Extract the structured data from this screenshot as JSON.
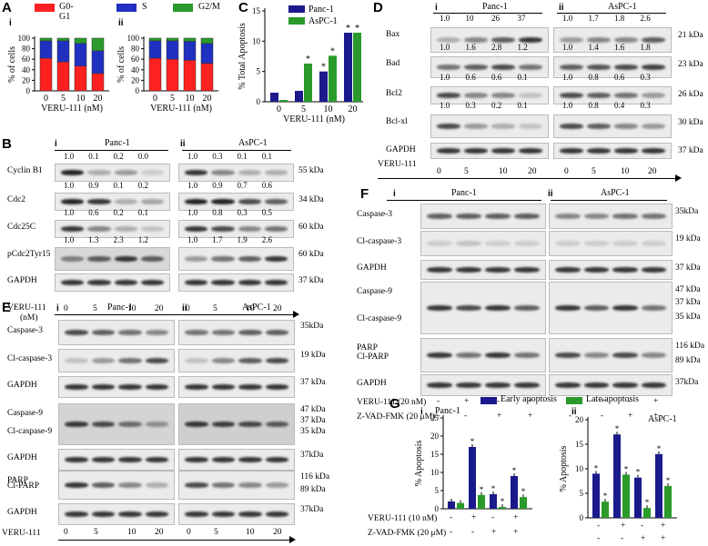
{
  "panelA": {
    "label": "A",
    "sub_i": "i",
    "sub_ii": "ii",
    "legend": [
      {
        "name": "G0-G1",
        "color": "#ff2020"
      },
      {
        "name": "S",
        "color": "#2030c0"
      },
      {
        "name": "G2/M",
        "color": "#2a9a2a"
      }
    ],
    "ylabel": "% of cells",
    "xlabel": "VERU-111 (nM)",
    "yticks": [
      "0",
      "20",
      "40",
      "60",
      "80",
      "100"
    ]
  },
  "chart_data": [
    {
      "type": "bar",
      "title": "",
      "xlabel": "VERU-111 (nM)",
      "ylabel": "% of cells",
      "ylim": [
        0,
        100
      ],
      "categories": [
        "0",
        "5",
        "10",
        "20"
      ],
      "series": [
        {
          "name": "G0-G1",
          "values": [
            62,
            55,
            47,
            33
          ]
        },
        {
          "name": "S",
          "values": [
            33,
            40,
            43,
            43
          ]
        },
        {
          "name": "G2/M",
          "values": [
            5,
            5,
            10,
            24
          ]
        }
      ]
    },
    {
      "type": "bar",
      "title": "",
      "xlabel": "VERU-111 (nM)",
      "ylabel": "% of cells",
      "ylim": [
        0,
        100
      ],
      "categories": [
        "0",
        "5",
        "10",
        "20"
      ],
      "series": [
        {
          "name": "G0-G1",
          "values": [
            62,
            60,
            58,
            52
          ]
        },
        {
          "name": "S",
          "values": [
            33,
            35,
            36,
            38
          ]
        },
        {
          "name": "G2/M",
          "values": [
            5,
            5,
            6,
            10
          ]
        }
      ]
    },
    {
      "type": "bar",
      "title": "",
      "xlabel": "VERU-111 (nM)",
      "ylabel": "% Total Apoptosis",
      "ylim": [
        0,
        15
      ],
      "categories": [
        "0",
        "5",
        "10",
        "20"
      ],
      "series": [
        {
          "name": "Panc-1",
          "values": [
            1.5,
            1.8,
            5.0,
            11.4
          ]
        },
        {
          "name": "AsPC-1",
          "values": [
            0.3,
            6.3,
            7.6,
            11.4
          ]
        }
      ]
    },
    {
      "type": "bar",
      "title": "",
      "xlabel": "",
      "ylabel": "% Apoptosis",
      "ylim": [
        0,
        25
      ],
      "categories": [
        "-/-",
        "+/-",
        "-/+",
        "+/+"
      ],
      "series": [
        {
          "name": "Early apoptosis",
          "values": [
            2.0,
            17.0,
            4.0,
            9.0
          ]
        },
        {
          "name": "Late apoptosis",
          "values": [
            1.6,
            3.8,
            0.5,
            3.2
          ]
        }
      ]
    },
    {
      "type": "bar",
      "title": "",
      "xlabel": "",
      "ylabel": "% Apoptosis",
      "ylim": [
        0,
        20
      ],
      "categories": [
        "-/-",
        "+/-",
        "-/+",
        "+/+"
      ],
      "series": [
        {
          "name": "Early apoptosis",
          "values": [
            9.0,
            17.0,
            8.2,
            13.0
          ]
        },
        {
          "name": "Late apoptosis",
          "values": [
            3.3,
            8.8,
            2.0,
            6.5
          ]
        }
      ]
    }
  ],
  "panelC": {
    "label": "C",
    "ylabel": "% Total Apoptosis",
    "xlabel": "VERU-111 (nM)",
    "legend": [
      {
        "name": "Panc-1",
        "color": "#1a1a8c"
      },
      {
        "name": "AsPC-1",
        "color": "#2a9a2a"
      }
    ],
    "yticks": [
      "0",
      "5",
      "10",
      "15"
    ],
    "star": "*"
  },
  "panelB": {
    "label": "B",
    "sub_i": "i",
    "sub_ii": "ii",
    "cell_i": "Panc-1",
    "cell_ii": "AsPC-1",
    "rows": [
      {
        "name": "Cyclin B1",
        "kda": "55 kDa",
        "nums_i": [
          "1.0",
          "0.1",
          "0.2",
          "0.0"
        ],
        "nums_ii": [
          "1.0",
          "0.3",
          "0.1",
          "0.1"
        ]
      },
      {
        "name": "Cdc2",
        "kda": "34 kDa",
        "nums_i": [
          "1.0",
          "0.9",
          "0.1",
          "0.2"
        ],
        "nums_ii": [
          "1.0",
          "0.9",
          "0.7",
          "0.6"
        ]
      },
      {
        "name": "Cdc25C",
        "kda": "60 kDa",
        "nums_i": [
          "1.0",
          "0.6",
          "0.2",
          "0.1"
        ],
        "nums_ii": [
          "1.0",
          "0.8",
          "0.3",
          "0.5"
        ]
      },
      {
        "name": "pCdc2Tyr15",
        "kda": "60 kDa",
        "nums_i": [
          "1.0",
          "1.3",
          "2.3",
          "1.2"
        ],
        "nums_ii": [
          "1.0",
          "1.7",
          "1.9",
          "2.6"
        ]
      },
      {
        "name": "GAPDH",
        "kda": "37 kDa",
        "nums_i": [],
        "nums_ii": []
      }
    ],
    "veru_label": "VERU-111",
    "veru_unit": "(nM)",
    "doses": [
      "0",
      "5",
      "10",
      "20"
    ]
  },
  "panelD": {
    "label": "D",
    "sub_i": "i",
    "sub_ii": "ii",
    "cell_i": "Panc-1",
    "cell_ii": "AsPC-1",
    "rows": [
      {
        "name": "Bax",
        "kda": "21 kDa",
        "nums_i": [
          "1.0",
          "10",
          "26",
          "37"
        ],
        "nums_ii": [
          "1.0",
          "1.7",
          "1.8",
          "2.6"
        ]
      },
      {
        "name": "Bad",
        "kda": "23 kDa",
        "nums_i": [
          "1.0",
          "1.6",
          "2.8",
          "1.2"
        ],
        "nums_ii": [
          "1.0",
          "1.4",
          "1.6",
          "1.8"
        ]
      },
      {
        "name": "Bcl2",
        "kda": "26 kDa",
        "nums_i": [
          "1.0",
          "0.6",
          "0.6",
          "0.1"
        ],
        "nums_ii": [
          "1.0",
          "0.8",
          "0.6",
          "0.3"
        ]
      },
      {
        "name": "Bcl-xl",
        "kda": "30 kDa",
        "nums_i": [
          "1.0",
          "0.3",
          "0.2",
          "0.1"
        ],
        "nums_ii": [
          "1.0",
          "0.8",
          "0.4",
          "0.3"
        ]
      },
      {
        "name": "GAPDH",
        "kda": "37 kDa",
        "nums_i": [],
        "nums_ii": []
      }
    ],
    "veru_label": "VERU-111",
    "doses": [
      "0",
      "5",
      "10",
      "20"
    ]
  },
  "panelE": {
    "label": "E",
    "sub_i": "i",
    "sub_ii": "ii",
    "cell_i": "Panc-1",
    "cell_ii": "AsPC-1",
    "rows": [
      {
        "name": "Caspase-3",
        "kda": "35kDa"
      },
      {
        "name": "Cl-caspase-3",
        "kda": "19 kDa"
      },
      {
        "name": "GAPDH",
        "kda": "37 kDa"
      },
      {
        "name": "Caspase-9",
        "name2": "Cl-caspase-9",
        "kda": "47 kDa",
        "kda2": "37 kDa",
        "kda3": "35 kDa"
      },
      {
        "name": "GAPDH",
        "kda": "37kDa"
      },
      {
        "name": "PARP",
        "name2": "Cl-PARP",
        "kda": "116 kDa",
        "kda2": "89 kDa"
      },
      {
        "name": "GAPDH",
        "kda": "37kDa"
      }
    ],
    "veru_label": "VERU-111",
    "doses": [
      "0",
      "5",
      "10",
      "20"
    ]
  },
  "panelF": {
    "label": "F",
    "sub_i": "i",
    "sub_ii": "ii",
    "cell_i": "Panc-1",
    "cell_ii": "AsPC-1",
    "rows": [
      {
        "name": "Caspase-3",
        "kda": "35kDa"
      },
      {
        "name": "Cl-caspase-3",
        "kda": "19 kDa"
      },
      {
        "name": "GAPDH",
        "kda": "37 kDa"
      },
      {
        "name": "Caspase-9",
        "name2": "Cl-caspase-9",
        "kda": "47 kDa",
        "kda2": "37 kDa",
        "kda3": "35 kDa"
      },
      {
        "name": "PARP",
        "name2": "Cl-PARP",
        "kda": "116 kDa",
        "kda2": "89 kDa"
      },
      {
        "name": "GAPDH",
        "kda": "37kDa"
      }
    ],
    "veru_label": "VERU-111 (20 nM)",
    "zvad_label": "Z-VAD-FMK (20 μM)",
    "veru_signs": [
      "-",
      "+",
      "-",
      "+"
    ],
    "zvad_signs": [
      "-",
      "-",
      "+",
      "+"
    ]
  },
  "panelG": {
    "label": "G",
    "sub_i": "i",
    "sub_ii": "ii",
    "cell_i": "Panc-1",
    "cell_ii": "AsPC-1",
    "legend": [
      {
        "name": "Early apoptosis",
        "color": "#1a1a8c"
      },
      {
        "name": "Late apoptosis",
        "color": "#2a9a2a"
      }
    ],
    "ylabel": "% Apoptosis",
    "yticks_i": [
      "0",
      "5",
      "10",
      "15",
      "20",
      "25"
    ],
    "yticks_ii": [
      "0",
      "5",
      "10",
      "15",
      "20"
    ],
    "veru_label": "VERU-111 (10 nM)",
    "zvad_label": "Z-VAD-FMK (20 μM)",
    "veru_signs": [
      "-",
      "+",
      "-",
      "+"
    ],
    "zvad_signs": [
      "-",
      "-",
      "+",
      "+"
    ]
  }
}
